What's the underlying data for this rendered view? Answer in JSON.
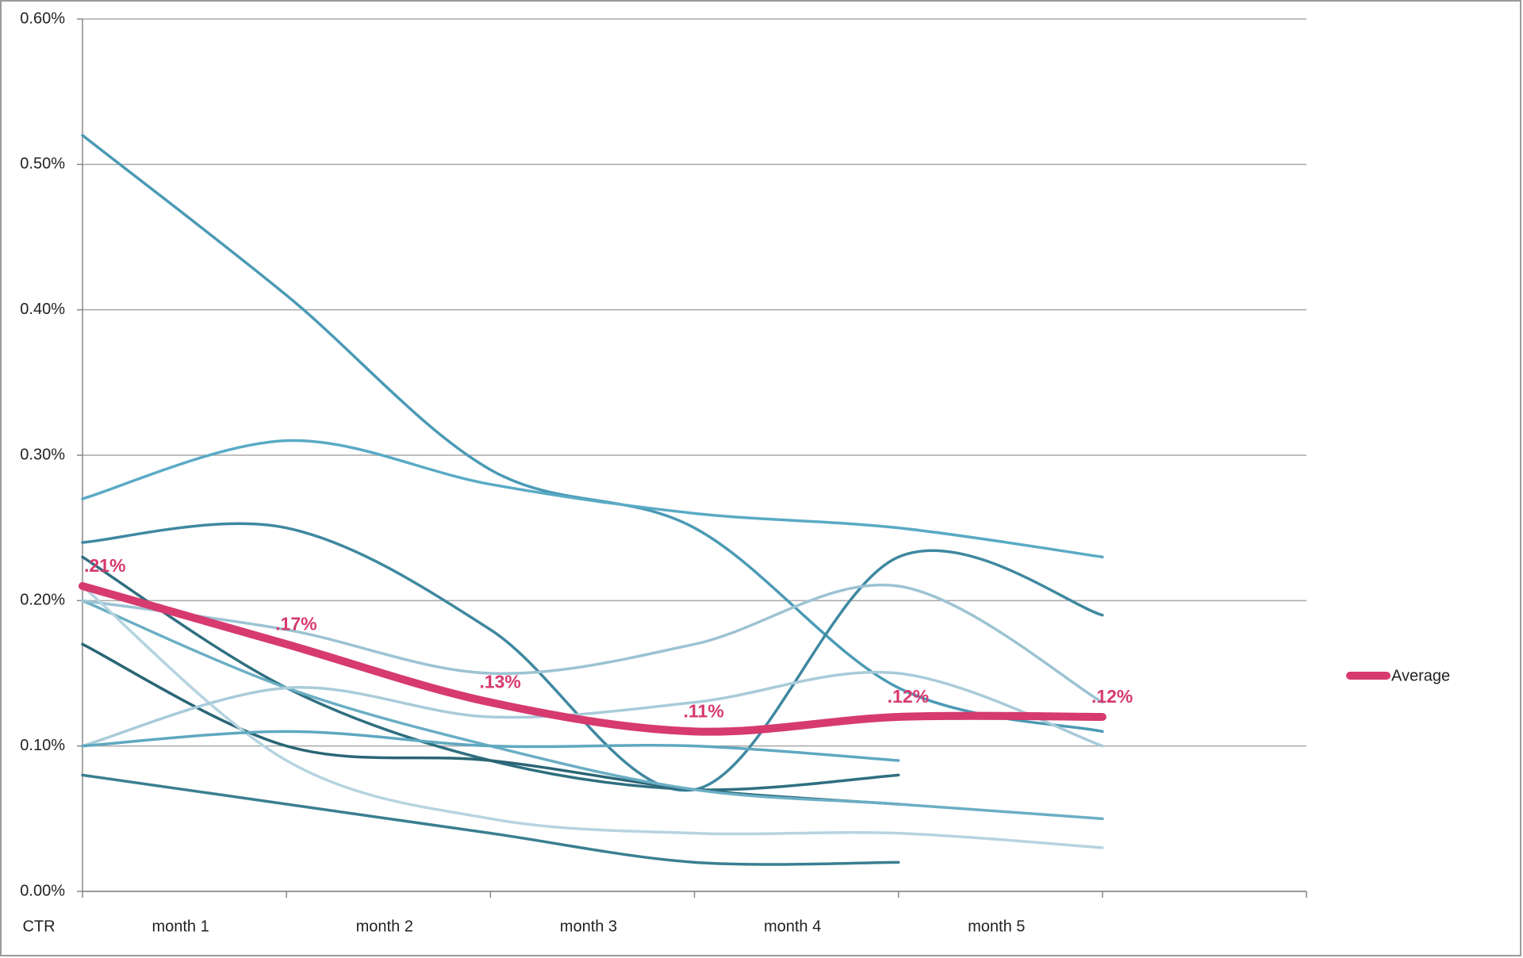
{
  "chart_data": {
    "type": "line",
    "categories": [
      "CTR",
      "month 1",
      "month 2",
      "month 3",
      "month 4",
      "month 5",
      null
    ],
    "ylim": [
      0,
      0.6
    ],
    "yticks": [
      {
        "value": 0,
        "label": "0.00%"
      },
      {
        "value": 0.1,
        "label": "0.10%"
      },
      {
        "value": 0.2,
        "label": "0.20%"
      },
      {
        "value": 0.3,
        "label": "0.30%"
      },
      {
        "value": 0.4,
        "label": "0.40%"
      },
      {
        "value": 0.5,
        "label": "0.50%"
      },
      {
        "value": 0.6,
        "label": "0.60%"
      }
    ],
    "grid": true,
    "smooth": true,
    "legend": "right",
    "series": [
      {
        "color": "#4a9ab5",
        "values": [
          0.52,
          0.41,
          0.29,
          0.25,
          0.14,
          0.11,
          null
        ]
      },
      {
        "color": "#5aaac5",
        "values": [
          0.27,
          0.31,
          0.28,
          0.26,
          0.25,
          0.23,
          null
        ]
      },
      {
        "color": "#3f88a0",
        "values": [
          0.24,
          0.25,
          0.18,
          0.07,
          0.23,
          0.19,
          null
        ]
      },
      {
        "color": "#2f6f80",
        "values": [
          0.23,
          0.14,
          0.09,
          0.07,
          0.08,
          null,
          null
        ]
      },
      {
        "color": "#2a6575",
        "values": [
          0.17,
          0.1,
          0.09,
          0.07,
          0.06,
          null,
          null
        ]
      },
      {
        "color": "#3a7f90",
        "values": [
          0.08,
          0.06,
          0.04,
          0.02,
          0.02,
          null,
          null
        ]
      },
      {
        "color": "#6aaec4",
        "values": [
          0.2,
          0.14,
          0.1,
          0.07,
          0.06,
          0.05,
          null
        ]
      },
      {
        "color": "#9cc3d3",
        "values": [
          0.2,
          0.18,
          0.15,
          0.17,
          0.21,
          0.13,
          null
        ]
      },
      {
        "color": "#b5d4e0",
        "values": [
          0.21,
          0.09,
          0.05,
          0.04,
          0.04,
          0.03,
          null
        ]
      },
      {
        "color": "#a9cbd9",
        "values": [
          0.1,
          0.14,
          0.12,
          0.13,
          0.15,
          0.1,
          null
        ]
      },
      {
        "color": "#5fa8c0",
        "values": [
          0.1,
          0.11,
          0.1,
          0.1,
          0.09,
          null,
          null
        ]
      },
      {
        "name": "Average",
        "color": "#d63a6e",
        "width": 10,
        "values": [
          0.21,
          0.17,
          0.13,
          0.11,
          0.12,
          0.12,
          null
        ],
        "value_labels": [
          ".21%",
          ".17%",
          ".13%",
          ".11%",
          ".12%",
          ".12%",
          null
        ]
      }
    ]
  }
}
